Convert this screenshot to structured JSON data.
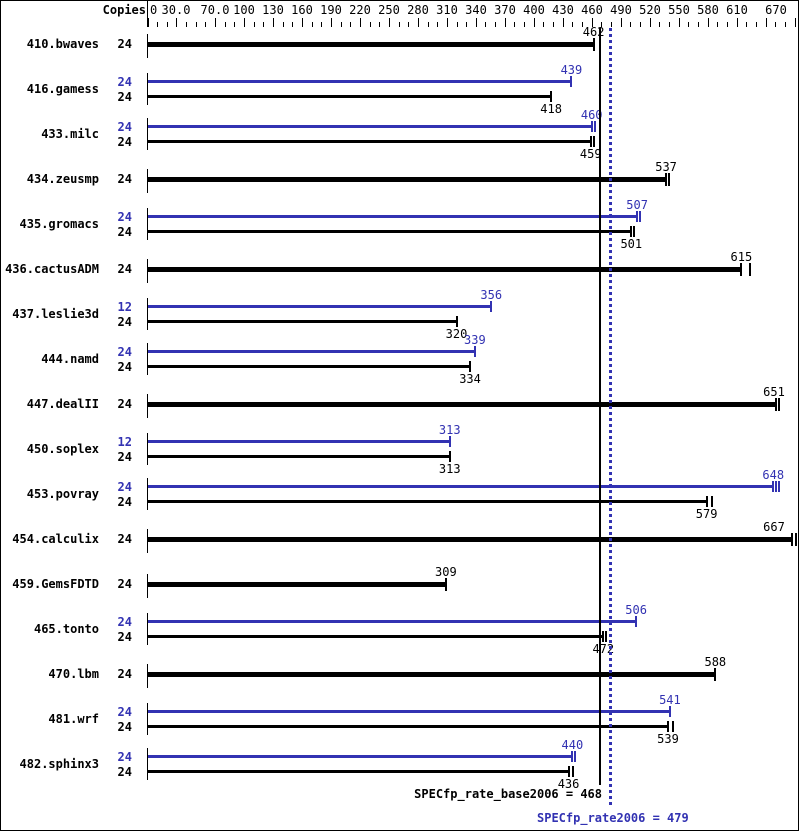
{
  "copies_header": "Copies",
  "colors": {
    "peak_blue": "#3232b2",
    "base_black": "#000000"
  },
  "summary": {
    "base_text": "SPECfp_rate_base2006 = 468",
    "base_value": 468,
    "peak_text": "SPECfp_rate2006 = 479",
    "peak_value": 479
  },
  "chart_data": {
    "type": "bar",
    "orientation": "horizontal",
    "title": "",
    "xlabel": "",
    "ylabel": "Copies",
    "xlim": [
      0,
      670
    ],
    "grid": false,
    "minor_tick_step": 10,
    "axis_labels": [
      {
        "v": 0,
        "t": "0"
      },
      {
        "v": 30,
        "t": "30.0"
      },
      {
        "v": 70,
        "t": "70.0"
      },
      {
        "v": 100,
        "t": "100"
      },
      {
        "v": 130,
        "t": "130"
      },
      {
        "v": 160,
        "t": "160"
      },
      {
        "v": 190,
        "t": "190"
      },
      {
        "v": 220,
        "t": "220"
      },
      {
        "v": 250,
        "t": "250"
      },
      {
        "v": 280,
        "t": "280"
      },
      {
        "v": 310,
        "t": "310"
      },
      {
        "v": 340,
        "t": "340"
      },
      {
        "v": 370,
        "t": "370"
      },
      {
        "v": 400,
        "t": "400"
      },
      {
        "v": 430,
        "t": "430"
      },
      {
        "v": 460,
        "t": "460"
      },
      {
        "v": 490,
        "t": "490"
      },
      {
        "v": 520,
        "t": "520"
      },
      {
        "v": 550,
        "t": "550"
      },
      {
        "v": 580,
        "t": "580"
      },
      {
        "v": 610,
        "t": "610"
      },
      {
        "v": 670,
        "t": "670"
      }
    ],
    "benchmarks": [
      {
        "name": "410.bwaves",
        "single": true,
        "bars": [
          {
            "kind": "base",
            "copies": "24",
            "value": 462,
            "marks": [
              0
            ]
          }
        ]
      },
      {
        "name": "416.gamess",
        "single": false,
        "bars": [
          {
            "kind": "peak",
            "copies": "24",
            "value": 439,
            "marks": [
              0
            ]
          },
          {
            "kind": "base",
            "copies": "24",
            "value": 418,
            "marks": [
              0
            ]
          }
        ]
      },
      {
        "name": "433.milc",
        "single": false,
        "bars": [
          {
            "kind": "peak",
            "copies": "24",
            "value": 460,
            "marks": [
              0,
              3
            ]
          },
          {
            "kind": "base",
            "copies": "24",
            "value": 459,
            "marks": [
              0,
              3
            ]
          }
        ]
      },
      {
        "name": "434.zeusmp",
        "single": true,
        "bars": [
          {
            "kind": "base",
            "copies": "24",
            "value": 537,
            "marks": [
              0,
              3
            ]
          }
        ]
      },
      {
        "name": "435.gromacs",
        "single": false,
        "bars": [
          {
            "kind": "peak",
            "copies": "24",
            "value": 507,
            "marks": [
              0,
              3
            ]
          },
          {
            "kind": "base",
            "copies": "24",
            "value": 501,
            "marks": [
              0,
              3
            ]
          }
        ]
      },
      {
        "name": "436.cactusADM",
        "single": true,
        "bars": [
          {
            "kind": "base",
            "copies": "24",
            "value": 615,
            "marks": [
              0,
              9
            ]
          }
        ]
      },
      {
        "name": "437.leslie3d",
        "single": false,
        "bars": [
          {
            "kind": "peak",
            "copies": "12",
            "value": 356,
            "marks": [
              0
            ]
          },
          {
            "kind": "base",
            "copies": "24",
            "value": 320,
            "marks": [
              0
            ]
          }
        ]
      },
      {
        "name": "444.namd",
        "single": false,
        "bars": [
          {
            "kind": "peak",
            "copies": "24",
            "value": 339,
            "marks": [
              0
            ]
          },
          {
            "kind": "base",
            "copies": "24",
            "value": 334,
            "marks": [
              0
            ]
          }
        ]
      },
      {
        "name": "447.dealII",
        "single": true,
        "bars": [
          {
            "kind": "base",
            "copies": "24",
            "value": 651,
            "marks": [
              0,
              3
            ]
          }
        ]
      },
      {
        "name": "450.soplex",
        "single": false,
        "bars": [
          {
            "kind": "peak",
            "copies": "12",
            "value": 313,
            "marks": [
              0
            ]
          },
          {
            "kind": "base",
            "copies": "24",
            "value": 313,
            "marks": [
              0
            ]
          }
        ]
      },
      {
        "name": "453.povray",
        "single": false,
        "bars": [
          {
            "kind": "peak",
            "copies": "24",
            "value": 648,
            "marks": [
              0,
              3,
              6
            ]
          },
          {
            "kind": "base",
            "copies": "24",
            "value": 579,
            "marks": [
              0,
              5
            ]
          }
        ]
      },
      {
        "name": "454.calculix",
        "single": true,
        "bars": [
          {
            "kind": "base",
            "copies": "24",
            "value": 667,
            "marks": [
              0,
              4
            ]
          }
        ]
      },
      {
        "name": "459.GemsFDTD",
        "single": true,
        "bars": [
          {
            "kind": "base",
            "copies": "24",
            "value": 309,
            "marks": [
              0
            ]
          }
        ]
      },
      {
        "name": "465.tonto",
        "single": false,
        "bars": [
          {
            "kind": "peak",
            "copies": "24",
            "value": 506,
            "marks": [
              0
            ]
          },
          {
            "kind": "base",
            "copies": "24",
            "value": 472,
            "marks": [
              0,
              3
            ]
          }
        ]
      },
      {
        "name": "470.lbm",
        "single": true,
        "bars": [
          {
            "kind": "base",
            "copies": "24",
            "value": 588,
            "marks": [
              0
            ]
          }
        ]
      },
      {
        "name": "481.wrf",
        "single": false,
        "bars": [
          {
            "kind": "peak",
            "copies": "24",
            "value": 541,
            "marks": [
              0
            ]
          },
          {
            "kind": "base",
            "copies": "24",
            "value": 539,
            "marks": [
              0,
              5
            ]
          }
        ]
      },
      {
        "name": "482.sphinx3",
        "single": false,
        "bars": [
          {
            "kind": "peak",
            "copies": "24",
            "value": 440,
            "marks": [
              0,
              3
            ]
          },
          {
            "kind": "base",
            "copies": "24",
            "value": 436,
            "marks": [
              0,
              4
            ]
          }
        ]
      }
    ]
  }
}
